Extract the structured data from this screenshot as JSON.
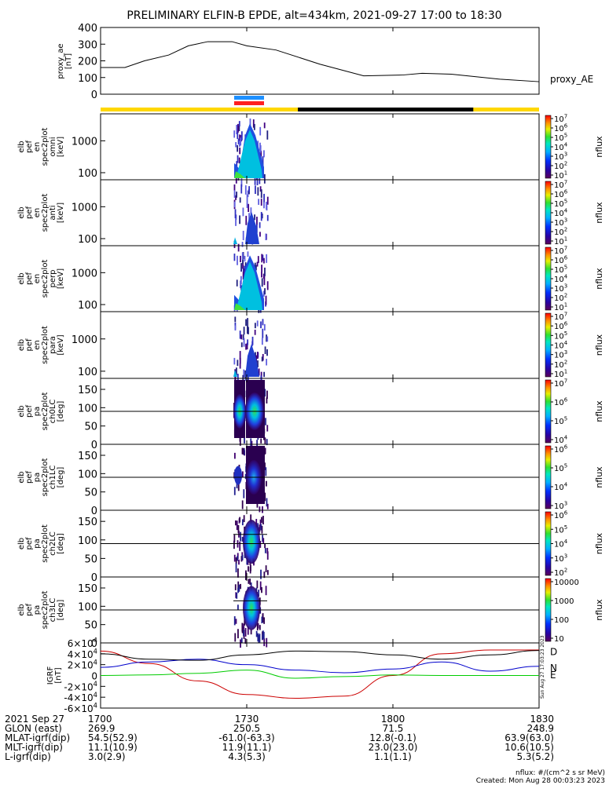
{
  "title": "PRELIMINARY ELFIN-B EPDE, alt=434km, 2021-09-27 17:00 to 18:30",
  "footer_units": "nflux: #/(cm^2 s sr MeV)",
  "footer_created": "Created: Mon Aug 28 00:03:23 2023",
  "side_stamp": "Sun Aug 27 17:03:23 2023",
  "colors": {
    "yellow": "#ffd700",
    "black": "#000000",
    "blue": "#1e90ff",
    "red": "#ff2020",
    "trace_black": "#000000",
    "trace_blue": "#0000cc",
    "trace_red": "#cc0000",
    "trace_green": "#00cc00"
  },
  "chart_data": {
    "type": "multi-panel time series",
    "x_range": [
      "17:00",
      "18:30"
    ],
    "x_ticks": [
      "1700",
      "1730",
      "1800",
      "1830"
    ],
    "panels": [
      {
        "id": "proxy_ae",
        "kind": "line",
        "ylabel": [
          "proxy_ae",
          "[nT]"
        ],
        "legend": "proxy_AE",
        "ylim": [
          0,
          400
        ],
        "yticks": [
          "0",
          "100",
          "200",
          "300",
          "400"
        ],
        "x_min": [
          0,
          5,
          9,
          14,
          18,
          22,
          27,
          30,
          36,
          45,
          54,
          62,
          66,
          72,
          82,
          90
        ],
        "values": [
          160,
          160,
          200,
          235,
          290,
          315,
          315,
          290,
          265,
          180,
          110,
          115,
          125,
          120,
          90,
          75
        ]
      },
      {
        "id": "en_omni",
        "kind": "spectrogram",
        "ylabel": [
          "elb",
          "pef",
          "en",
          "spec2plot",
          "omni",
          "[keV]"
        ],
        "yscale": "log",
        "yticks": [
          "100",
          "1000"
        ],
        "ylim": [
          60,
          7000
        ],
        "cbar": {
          "label": "nflux",
          "ticks": [
            "10^1",
            "10^2",
            "10^3",
            "10^4",
            "10^5",
            "10^6",
            "10^7"
          ]
        }
      },
      {
        "id": "en_anti",
        "kind": "spectrogram",
        "ylabel": [
          "elb",
          "pef",
          "en",
          "spec2plot",
          "anti",
          "[keV]"
        ],
        "yscale": "log",
        "yticks": [
          "100",
          "1000"
        ],
        "ylim": [
          60,
          7000
        ],
        "cbar": {
          "label": "nflux",
          "ticks": [
            "10^1",
            "10^2",
            "10^3",
            "10^4",
            "10^5",
            "10^6",
            "10^7"
          ]
        }
      },
      {
        "id": "en_perp",
        "kind": "spectrogram",
        "ylabel": [
          "elb",
          "pef",
          "en",
          "spec2plot",
          "perp",
          "[keV]"
        ],
        "yscale": "log",
        "yticks": [
          "100",
          "1000"
        ],
        "ylim": [
          60,
          7000
        ],
        "cbar": {
          "label": "nflux",
          "ticks": [
            "10^1",
            "10^2",
            "10^3",
            "10^4",
            "10^5",
            "10^6",
            "10^7"
          ]
        }
      },
      {
        "id": "en_para",
        "kind": "spectrogram",
        "ylabel": [
          "elb",
          "pef",
          "en",
          "spec2plot",
          "para",
          "[keV]"
        ],
        "yscale": "log",
        "yticks": [
          "100",
          "1000"
        ],
        "ylim": [
          60,
          7000
        ],
        "cbar": {
          "label": "nflux",
          "ticks": [
            "10^1",
            "10^2",
            "10^3",
            "10^4",
            "10^5",
            "10^6",
            "10^7"
          ]
        }
      },
      {
        "id": "pa_ch0",
        "kind": "spectrogram",
        "ylabel": [
          "elb",
          "pef",
          "pa",
          "spec2plot",
          "ch0LC",
          "[deg]"
        ],
        "yscale": "linear",
        "yticks": [
          "0",
          "50",
          "100",
          "150"
        ],
        "ylim": [
          0,
          180
        ],
        "cbar": {
          "label": "nflux",
          "ticks": [
            "10^4",
            "10^5",
            "10^6",
            "10^7"
          ]
        }
      },
      {
        "id": "pa_ch1",
        "kind": "spectrogram",
        "ylabel": [
          "elb",
          "pef",
          "pa",
          "spec2plot",
          "ch1LC",
          "[deg]"
        ],
        "yscale": "linear",
        "yticks": [
          "0",
          "50",
          "100",
          "150"
        ],
        "ylim": [
          0,
          180
        ],
        "cbar": {
          "label": "nflux",
          "ticks": [
            "10^3",
            "10^4",
            "10^5",
            "10^6"
          ]
        }
      },
      {
        "id": "pa_ch2",
        "kind": "spectrogram",
        "ylabel": [
          "elb",
          "pef",
          "pa",
          "spec2plot",
          "ch2LC",
          "[deg]"
        ],
        "yscale": "linear",
        "yticks": [
          "0",
          "50",
          "100",
          "150"
        ],
        "ylim": [
          0,
          180
        ],
        "cbar": {
          "label": "nflux",
          "ticks": [
            "10^2",
            "10^3",
            "10^4",
            "10^5",
            "10^6"
          ]
        }
      },
      {
        "id": "pa_ch3",
        "kind": "spectrogram",
        "ylabel": [
          "elb",
          "pef",
          "pa",
          "spec2plot",
          "ch3LC",
          "[deg]"
        ],
        "yscale": "linear",
        "yticks": [
          "0",
          "50",
          "100",
          "150"
        ],
        "ylim": [
          0,
          180
        ],
        "cbar": {
          "label": "nflux",
          "ticks": [
            "10",
            "100",
            "1000",
            "10000"
          ]
        }
      },
      {
        "id": "igrf",
        "kind": "line",
        "ylabel": [
          "IGRF",
          "[nT]"
        ],
        "ylim": [
          -60000,
          60000
        ],
        "yticks": [
          "-6×10^4",
          "-4×10^4",
          "-2×10^4",
          "0",
          "2×10^4",
          "4×10^4",
          "6×10^4"
        ],
        "legend": [
          "D",
          "N",
          "E"
        ],
        "x_min": [
          0,
          10,
          20,
          30,
          40,
          50,
          60,
          70,
          80,
          90
        ],
        "series": [
          {
            "name": "D",
            "values": [
              45000,
              22000,
              -10000,
              -35000,
              -42000,
              -38000,
              0,
              40000,
              47000,
              47000
            ]
          },
          {
            "name": "N",
            "values": [
              15000,
              25000,
              30000,
              20000,
              10000,
              5000,
              12000,
              25000,
              8000,
              17000
            ]
          },
          {
            "name": "E",
            "values": [
              0,
              1000,
              4000,
              10000,
              -5000,
              -2000,
              1000,
              0,
              0,
              0
            ]
          },
          {
            "name": "",
            "values": [
              40000,
              30000,
              28000,
              38000,
              45000,
              44000,
              38000,
              30000,
              38000,
              46000
            ]
          }
        ]
      }
    ],
    "ephemeris": {
      "rows": [
        {
          "label": "2021 Sep 27",
          "values": [
            "1700",
            "1730",
            "1800",
            "1830"
          ]
        },
        {
          "label": "GLON (east)",
          "values": [
            "269.9",
            "250.5",
            "71.5",
            "248.9"
          ]
        },
        {
          "label": "MLAT-igrf(dip)",
          "values": [
            "54.5(52.9)",
            "-61.0(-63.3)",
            "12.8(-0.1)",
            "63.9(63.0)"
          ]
        },
        {
          "label": "MLT-igrf(dip)",
          "values": [
            "11.1(10.9)",
            "11.9(11.1)",
            "23.0(23.0)",
            "10.6(10.5)"
          ]
        },
        {
          "label": "L-igrf(dip)",
          "values": [
            "3.0(2.9)",
            "4.3(5.3)",
            "1.1(1.1)",
            "5.3(5.2)"
          ]
        }
      ]
    }
  }
}
